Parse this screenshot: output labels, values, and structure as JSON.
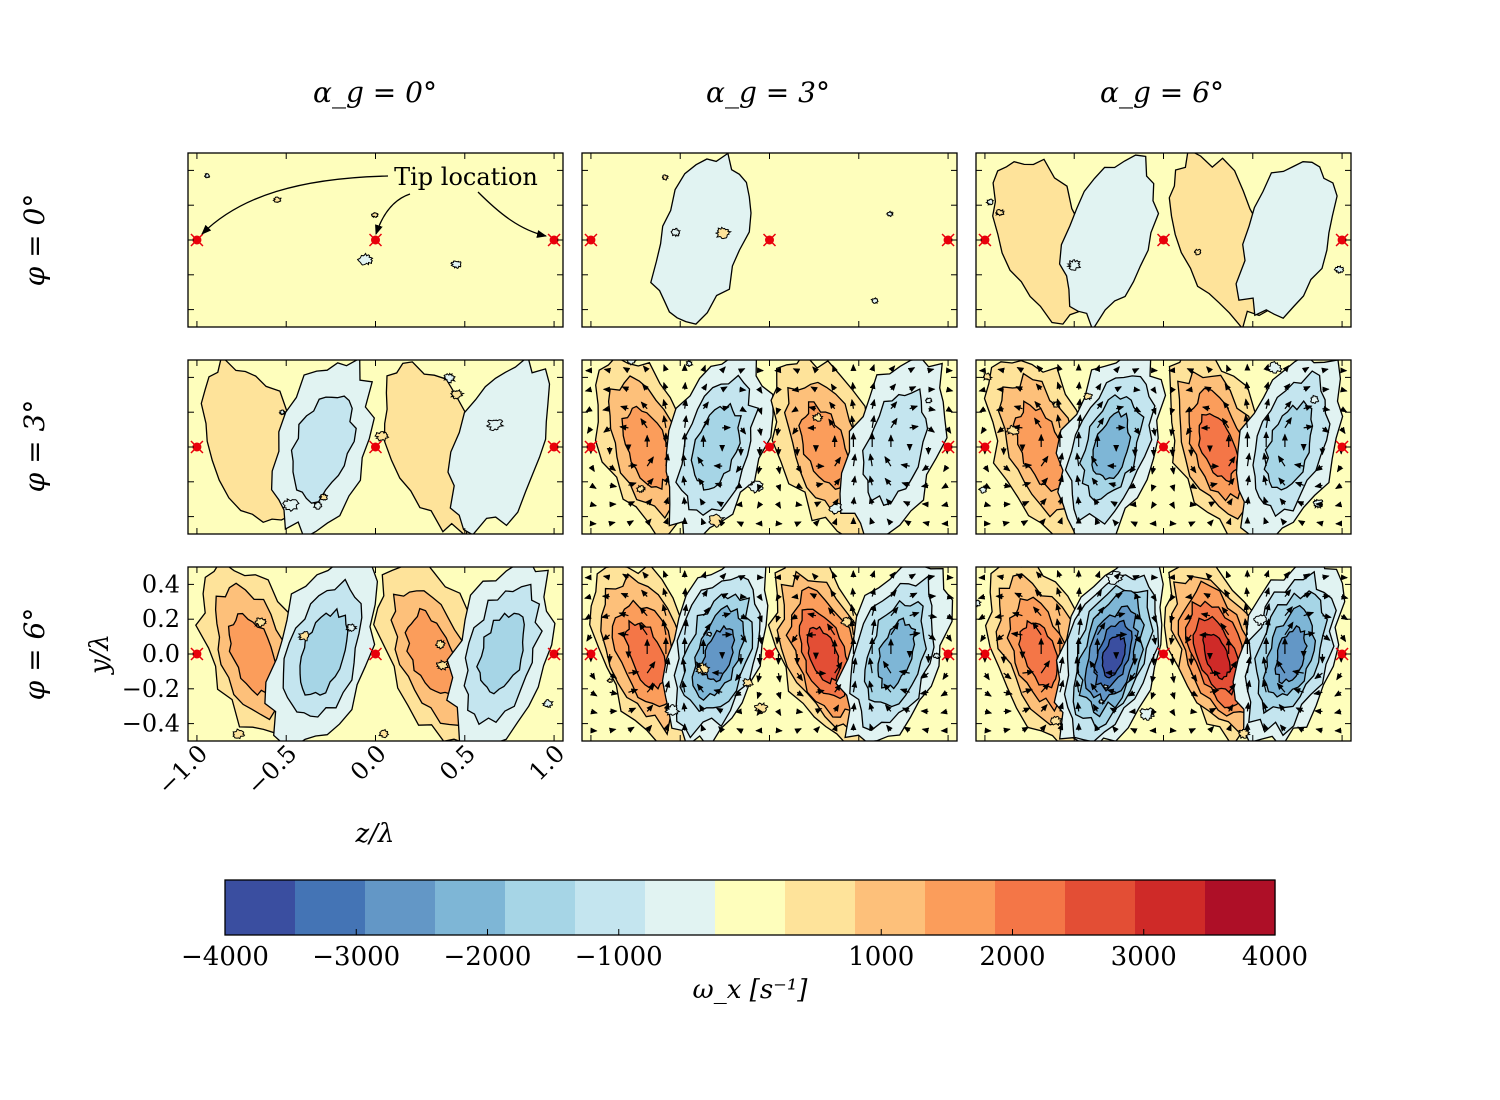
{
  "chart_data": {
    "type": "heatmap",
    "description_kind": "contour vorticity field panels",
    "column_titles": [
      "α_g = 0°",
      "α_g = 3°",
      "α_g = 6°"
    ],
    "row_titles": [
      "φ = 0°",
      "φ = 3°",
      "φ = 6°"
    ],
    "xlabel": "z/λ",
    "ylabel": "y/λ",
    "xlim": [
      -1.05,
      1.05
    ],
    "ylim": [
      -0.5,
      0.5
    ],
    "x_ticks": [
      -1.0,
      -0.5,
      0.0,
      0.5,
      1.0
    ],
    "x_tick_labels": [
      "−1.0",
      "−0.5",
      "0.0",
      "0.5",
      "1.0"
    ],
    "y_ticks": [
      0.4,
      0.2,
      0.0,
      -0.2,
      -0.4
    ],
    "y_tick_labels": [
      "0.4",
      "0.2",
      "0.0",
      "−0.2",
      "−0.4"
    ],
    "annotation": "Tip location",
    "tip_locations_z": [
      -1.0,
      0.0,
      1.0
    ],
    "colorbar": {
      "label": "ω_x [s⁻¹]",
      "min": -4000,
      "max": 4000,
      "levels": 15,
      "ticks": [
        -4000,
        -3000,
        -2000,
        -1000,
        1000,
        2000,
        3000,
        4000
      ],
      "tick_labels": [
        "−4000",
        "−3000",
        "−2000",
        "−1000",
        "1000",
        "2000",
        "3000",
        "4000"
      ],
      "colors": [
        "#3a4ea0",
        "#4474b5",
        "#6397c6",
        "#7eb6d6",
        "#a6d5e6",
        "#c4e5ef",
        "#e1f3f2",
        "#fefebc",
        "#fee39a",
        "#fdc07a",
        "#fb9d5b",
        "#f47647",
        "#e34e35",
        "#cf2a28",
        "#ae0f27"
      ]
    },
    "vortex_peaks": [
      {
        "row": 0,
        "col": 0,
        "peaks_s-1": []
      },
      {
        "row": 0,
        "col": 1,
        "peaks_s-1": [
          -700
        ]
      },
      {
        "row": 0,
        "col": 2,
        "peaks_s-1": [
          800,
          -700,
          800,
          -700
        ]
      },
      {
        "row": 1,
        "col": 0,
        "peaks_s-1": [
          900,
          -1200,
          900,
          -800
        ]
      },
      {
        "row": 1,
        "col": 1,
        "peaks_s-1": [
          1700,
          -1900,
          1800,
          -1500
        ]
      },
      {
        "row": 1,
        "col": 2,
        "peaks_s-1": [
          2000,
          -2400,
          2400,
          -2000
        ]
      },
      {
        "row": 2,
        "col": 0,
        "peaks_s-1": [
          1600,
          -1900,
          1800,
          -1700
        ]
      },
      {
        "row": 2,
        "col": 1,
        "peaks_s-1": [
          2400,
          -3000,
          2800,
          -2400
        ]
      },
      {
        "row": 2,
        "col": 2,
        "peaks_s-1": [
          2500,
          -3800,
          3400,
          -2700
        ]
      }
    ]
  }
}
